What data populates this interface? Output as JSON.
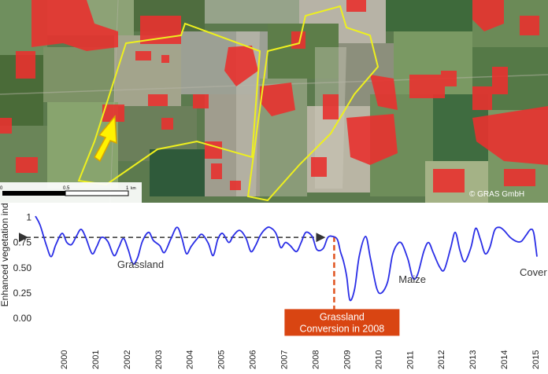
{
  "map": {
    "copyright": "© GRAS GmbH",
    "scale_bar": {
      "ticks": [
        "0",
        "0.5",
        "1"
      ],
      "unit": "km"
    },
    "colors": {
      "change_patches": "#e8322f",
      "boundary": "#eef01e",
      "arrow": "#fff200"
    }
  },
  "chart_data": {
    "type": "line",
    "ylabel": "Enhanced vegetation index",
    "y_ticks": [
      "1",
      "0.75",
      "0.50",
      "0.25",
      "0.00"
    ],
    "ylim": [
      -0.1,
      1.05
    ],
    "xlim": [
      1999,
      2015.15
    ],
    "x_ticks": [
      "2000",
      "2001",
      "2002",
      "2003",
      "2004",
      "2005",
      "2006",
      "2007",
      "2008",
      "2009",
      "2010",
      "2011",
      "2012",
      "2013",
      "2014",
      "2015"
    ],
    "series": [
      {
        "name": "",
        "color": "#2a2ee6",
        "x": [
          1999.0,
          1999.15,
          1999.35,
          1999.5,
          1999.65,
          1999.85,
          2000.0,
          2000.15,
          2000.3,
          2000.45,
          2000.6,
          2000.8,
          2000.95,
          2001.1,
          2001.3,
          2001.5,
          2001.65,
          2001.8,
          2001.95,
          2002.1,
          2002.25,
          2002.4,
          2002.6,
          2002.75,
          2002.95,
          2003.1,
          2003.3,
          2003.5,
          2003.65,
          2003.8,
          2003.95,
          2004.15,
          2004.3,
          2004.5,
          2004.65,
          2004.8,
          2004.95,
          2005.15,
          2005.3,
          2005.5,
          2005.7,
          2005.85,
          2006.0,
          2006.15,
          2006.3,
          2006.45,
          2006.65,
          2006.8,
          2006.95,
          2007.1,
          2007.3,
          2007.45,
          2007.6,
          2007.8,
          2007.95,
          2008.15,
          2008.3,
          2008.45,
          2008.6,
          2008.7,
          2008.8,
          2008.9,
          2009.0,
          2009.15,
          2009.3,
          2009.5,
          2009.65,
          2009.85,
          2010.0,
          2010.2,
          2010.35,
          2010.5,
          2010.65,
          2010.85,
          2011.0,
          2011.15,
          2011.35,
          2011.5,
          2011.65,
          2011.85,
          2012.0,
          2012.2,
          2012.35,
          2012.5,
          2012.65,
          2012.85,
          2013.0,
          2013.15,
          2013.3,
          2013.45,
          2013.6,
          2013.75,
          2013.9,
          2014.1,
          2014.3,
          2014.45,
          2014.6,
          2014.75,
          2014.85,
          2014.95
        ],
        "values": [
          1.01,
          0.92,
          0.72,
          0.61,
          0.73,
          0.84,
          0.75,
          0.73,
          0.81,
          0.88,
          0.8,
          0.64,
          0.71,
          0.8,
          0.76,
          0.62,
          0.7,
          0.79,
          0.68,
          0.54,
          0.6,
          0.76,
          0.85,
          0.77,
          0.72,
          0.65,
          0.78,
          0.9,
          0.8,
          0.64,
          0.71,
          0.79,
          0.83,
          0.74,
          0.62,
          0.78,
          0.84,
          0.75,
          0.82,
          0.87,
          0.79,
          0.66,
          0.72,
          0.82,
          0.88,
          0.9,
          0.84,
          0.7,
          0.75,
          0.72,
          0.66,
          0.75,
          0.85,
          0.81,
          0.68,
          0.69,
          0.8,
          0.81,
          0.78,
          0.66,
          0.56,
          0.41,
          0.18,
          0.29,
          0.62,
          0.81,
          0.6,
          0.3,
          0.25,
          0.36,
          0.62,
          0.73,
          0.74,
          0.58,
          0.4,
          0.43,
          0.66,
          0.75,
          0.65,
          0.51,
          0.48,
          0.69,
          0.85,
          0.67,
          0.56,
          0.7,
          0.89,
          0.78,
          0.64,
          0.7,
          0.87,
          0.9,
          0.87,
          0.8,
          0.76,
          0.76,
          0.82,
          0.88,
          0.84,
          0.61
        ]
      }
    ],
    "annotations": [
      {
        "text": "Grassland",
        "x": 2001.6,
        "y": 0.5
      },
      {
        "text": "Maize",
        "x": 2010.55,
        "y": 0.35
      },
      {
        "text": "Cover Crop",
        "x": 2014.4,
        "y": 0.42
      }
    ],
    "baseline_arrow": {
      "x_start": 1999.0,
      "x_end": 2008.15,
      "y": 0.8,
      "color": "#333333"
    },
    "conversion_line": {
      "x": 2008.5,
      "y_from": 0.0,
      "y_to": 0.81,
      "color": "#e0531e"
    },
    "conversion_label": {
      "lines": [
        "Grassland",
        "Conversion in 2008"
      ],
      "x": 2008.75,
      "y": 0.06,
      "bg": "#d94512"
    }
  }
}
